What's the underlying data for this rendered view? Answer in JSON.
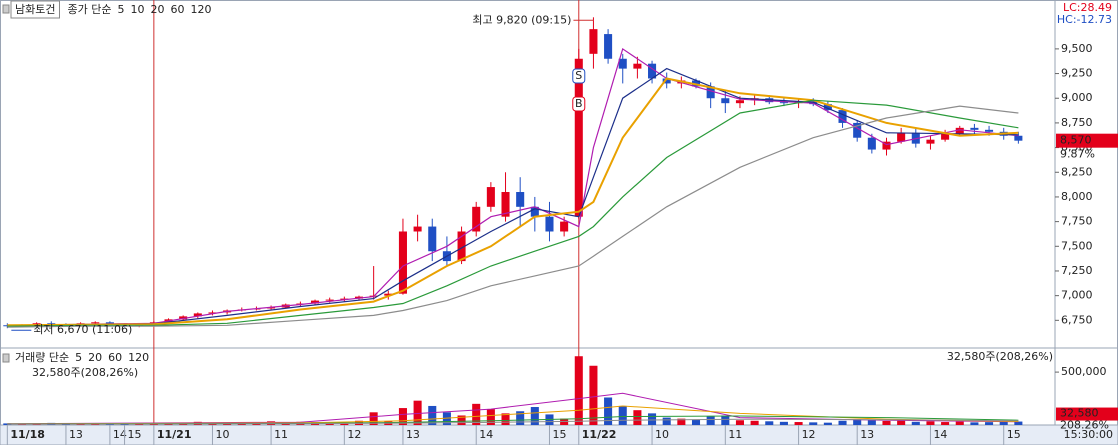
{
  "chart_data": {
    "type": "candlestick",
    "title": "남화토건",
    "ma_label": "종가 단순",
    "lc": "LC:28.49",
    "hc": "HC:-12.73",
    "up_color": "#e3001b",
    "down_color": "#1f4fc4",
    "xlim": [
      -0.5,
      71.5
    ],
    "ylim": [
      6500,
      9975
    ],
    "grid": false,
    "yticks": [
      {
        "value": 6750,
        "label": "6,750"
      },
      {
        "value": 7000,
        "label": "7,000"
      },
      {
        "value": 7250,
        "label": "7,250"
      },
      {
        "value": 7500,
        "label": "7,500"
      },
      {
        "value": 7750,
        "label": "7,750"
      },
      {
        "value": 8000,
        "label": "8,000"
      },
      {
        "value": 8250,
        "label": "8,250"
      },
      {
        "value": 8500,
        "label": "8,500"
      },
      {
        "value": 8750,
        "label": "8,750"
      },
      {
        "value": 9000,
        "label": "9,000"
      },
      {
        "value": 9250,
        "label": "9,250"
      },
      {
        "value": 9500,
        "label": "9,500"
      }
    ],
    "xticks": [
      {
        "value": 0,
        "label": "11/18"
      },
      {
        "value": 4,
        "label": "13"
      },
      {
        "value": 7,
        "label": "14"
      },
      {
        "value": 8,
        "label": "15"
      },
      {
        "value": 10,
        "label": "11/21"
      },
      {
        "value": 14,
        "label": "10"
      },
      {
        "value": 18,
        "label": "11"
      },
      {
        "value": 23,
        "label": "12"
      },
      {
        "value": 27,
        "label": "13"
      },
      {
        "value": 32,
        "label": "14"
      },
      {
        "value": 37,
        "label": "15"
      },
      {
        "value": 39,
        "label": "11/22"
      },
      {
        "value": 44,
        "label": "10"
      },
      {
        "value": 49,
        "label": "11"
      },
      {
        "value": 54,
        "label": "12"
      },
      {
        "value": 58,
        "label": "13"
      },
      {
        "value": 63,
        "label": "14"
      },
      {
        "value": 68,
        "label": "15"
      }
    ],
    "time_label": "15:30:00",
    "open": [
      6700,
      6690,
      6700,
      6720,
      6710,
      6700,
      6720,
      6730,
      6710,
      6690,
      6710,
      6730,
      6760,
      6790,
      6820,
      6830,
      6850,
      6860,
      6870,
      6880,
      6910,
      6920,
      6950,
      6960,
      6970,
      6990,
      7000,
      7020,
      7650,
      7700,
      7450,
      7350,
      7650,
      7900,
      7800,
      8050,
      7900,
      7800,
      7650,
      7800,
      9450,
      9650,
      9400,
      9300,
      9350,
      9200,
      9150,
      9180,
      9120,
      9000,
      8950,
      8980,
      9000,
      8960,
      8950,
      8970,
      8940,
      8880,
      8750,
      8600,
      8480,
      8560,
      8650,
      8540,
      8580,
      8640,
      8700,
      8680,
      8660,
      8620
    ],
    "high": [
      6720,
      6710,
      6730,
      6740,
      6720,
      6730,
      6740,
      6740,
      6720,
      6720,
      6740,
      6770,
      6800,
      6830,
      6850,
      6860,
      6880,
      6890,
      6900,
      6920,
      6940,
      6960,
      6980,
      6990,
      7000,
      7300,
      7050,
      7780,
      7820,
      7780,
      7600,
      7700,
      7950,
      8150,
      8250,
      8200,
      8000,
      7950,
      7800,
      9500,
      9820,
      9700,
      9450,
      9420,
      9380,
      9260,
      9220,
      9200,
      9160,
      9080,
      9020,
      9040,
      9030,
      9000,
      8990,
      9000,
      8970,
      8900,
      8780,
      8640,
      8600,
      8700,
      8690,
      8620,
      8680,
      8720,
      8740,
      8720,
      8700,
      8660
    ],
    "low": [
      6670,
      6680,
      6690,
      6700,
      6690,
      6690,
      6700,
      6700,
      6680,
      6680,
      6700,
      6720,
      6750,
      6770,
      6800,
      6810,
      6840,
      6850,
      6860,
      6870,
      6890,
      6900,
      6930,
      6940,
      6950,
      6960,
      6960,
      7010,
      7550,
      7350,
      7300,
      7320,
      7600,
      7850,
      7750,
      7700,
      7650,
      7550,
      7600,
      7780,
      9300,
      9350,
      9150,
      9200,
      9150,
      9100,
      9100,
      9100,
      8900,
      8850,
      8900,
      8930,
      8940,
      8920,
      8900,
      8920,
      8850,
      8700,
      8560,
      8440,
      8420,
      8540,
      8500,
      8480,
      8560,
      8620,
      8640,
      8620,
      8580,
      8540
    ],
    "close": [
      6690,
      6700,
      6720,
      6710,
      6700,
      6720,
      6730,
      6710,
      6690,
      6710,
      6730,
      6760,
      6790,
      6820,
      6830,
      6850,
      6860,
      6870,
      6880,
      6910,
      6920,
      6950,
      6960,
      6970,
      6990,
      7000,
      7020,
      7650,
      7700,
      7450,
      7350,
      7650,
      7900,
      8100,
      8050,
      7900,
      7800,
      7650,
      7750,
      9400,
      9700,
      9400,
      9300,
      9350,
      9200,
      9150,
      9180,
      9120,
      9000,
      8950,
      8980,
      9000,
      8960,
      8950,
      8970,
      8940,
      8880,
      8750,
      8600,
      8480,
      8560,
      8650,
      8540,
      8580,
      8640,
      8700,
      8680,
      8660,
      8620,
      8570
    ],
    "series": [
      {
        "name": "5",
        "color": "#b01cb0",
        "x": [
          0,
          5,
          10,
          15,
          20,
          25,
          27,
          30,
          33,
          36,
          39,
          40,
          42,
          45,
          50,
          55,
          60,
          65,
          69
        ],
        "values": [
          6700,
          6710,
          6720,
          6840,
          6910,
          6990,
          7300,
          7500,
          7800,
          7900,
          7700,
          8500,
          9500,
          9200,
          8990,
          8950,
          8530,
          8680,
          8620
        ]
      },
      {
        "name": "10",
        "color": "#1c2f8a",
        "x": [
          0,
          5,
          10,
          15,
          20,
          25,
          27,
          30,
          33,
          36,
          39,
          40,
          42,
          45,
          50,
          55,
          60,
          65,
          69
        ],
        "values": [
          6700,
          6705,
          6715,
          6800,
          6890,
          6970,
          7150,
          7400,
          7650,
          7880,
          7800,
          8200,
          9000,
          9300,
          9000,
          8960,
          8650,
          8640,
          8630
        ]
      },
      {
        "name": "20",
        "color": "#e9a100",
        "x": [
          0,
          5,
          10,
          15,
          20,
          25,
          27,
          30,
          33,
          36,
          39,
          40,
          42,
          45,
          50,
          55,
          60,
          65,
          69
        ],
        "values": [
          6700,
          6705,
          6710,
          6760,
          6860,
          6940,
          7050,
          7300,
          7500,
          7800,
          7850,
          7950,
          8600,
          9200,
          9050,
          8980,
          8750,
          8620,
          8650
        ]
      },
      {
        "name": "60",
        "color": "#2a9a3a",
        "x": [
          0,
          5,
          10,
          15,
          20,
          25,
          27,
          30,
          33,
          36,
          39,
          40,
          42,
          45,
          50,
          55,
          60,
          65,
          69
        ],
        "values": [
          6690,
          6700,
          6700,
          6720,
          6800,
          6880,
          6920,
          7100,
          7300,
          7450,
          7600,
          7700,
          8000,
          8400,
          8850,
          8980,
          8930,
          8800,
          8700
        ]
      },
      {
        "name": "120",
        "color": "#8c8c8c",
        "x": [
          0,
          5,
          10,
          15,
          20,
          25,
          27,
          30,
          33,
          36,
          39,
          40,
          42,
          45,
          50,
          55,
          60,
          65,
          69
        ],
        "values": [
          6680,
          6690,
          6690,
          6700,
          6750,
          6800,
          6850,
          6950,
          7100,
          7200,
          7300,
          7400,
          7600,
          7900,
          8300,
          8600,
          8800,
          8920,
          8850
        ]
      }
    ],
    "annotations": [
      {
        "text": "최고 9,820 (09:15)",
        "x": 40,
        "y": 9820,
        "side": "left"
      },
      {
        "text": "최저 6,670 (11:06)",
        "x": 0,
        "y": 6670,
        "side": "right"
      }
    ],
    "signals": [
      {
        "label": "S",
        "x": 39,
        "color": "#1f4fc4"
      },
      {
        "label": "B",
        "x": 39,
        "color": "#e3001b"
      }
    ],
    "last": {
      "value": 8570,
      "label": "8,570"
    },
    "change_label": "9.87%",
    "volume": {
      "label": "거래량 단순",
      "info": "32,580주(208,26%)",
      "ylim": [
        0,
        690000
      ],
      "yticks": [
        {
          "value": 500000,
          "label": "500,000"
        }
      ],
      "values": [
        15000,
        8000,
        12000,
        20000,
        9000,
        11000,
        14000,
        7000,
        10000,
        9000,
        18000,
        12000,
        22000,
        30000,
        15000,
        25000,
        28000,
        20000,
        35000,
        22000,
        30000,
        26000,
        18000,
        24000,
        40000,
        120000,
        35000,
        160000,
        230000,
        180000,
        120000,
        90000,
        200000,
        150000,
        110000,
        130000,
        170000,
        100000,
        60000,
        650000,
        560000,
        260000,
        180000,
        140000,
        110000,
        70000,
        60000,
        50000,
        80000,
        90000,
        45000,
        40000,
        35000,
        30000,
        28000,
        25000,
        22000,
        40000,
        55000,
        50000,
        38000,
        45000,
        30000,
        35000,
        28000,
        32000,
        25000,
        27000,
        30000,
        32580
      ],
      "series": [
        {
          "name": "5",
          "color": "#b01cb0",
          "x": [
            0,
            20,
            27,
            33,
            39,
            42,
            50,
            60,
            69
          ],
          "values": [
            12000,
            26000,
            100000,
            150000,
            250000,
            300000,
            70000,
            45000,
            30000
          ]
        },
        {
          "name": "20",
          "color": "#e9a100",
          "x": [
            0,
            20,
            27,
            33,
            39,
            42,
            50,
            60,
            69
          ],
          "values": [
            10000,
            20000,
            40000,
            90000,
            140000,
            180000,
            110000,
            55000,
            33000
          ]
        },
        {
          "name": "60",
          "color": "#2a9a3a",
          "x": [
            0,
            20,
            27,
            33,
            39,
            42,
            50,
            60,
            69
          ],
          "values": [
            9000,
            15000,
            25000,
            40000,
            60000,
            80000,
            85000,
            70000,
            45000
          ]
        },
        {
          "name": "120",
          "color": "#8c8c8c",
          "x": [
            0,
            20,
            27,
            33,
            39,
            42,
            50,
            60,
            69
          ],
          "values": [
            8000,
            12000,
            18000,
            25000,
            35000,
            45000,
            55000,
            50000,
            40000
          ]
        }
      ],
      "last": {
        "value": 32580,
        "label": "32,580"
      },
      "last_pct": "208.26%"
    }
  }
}
